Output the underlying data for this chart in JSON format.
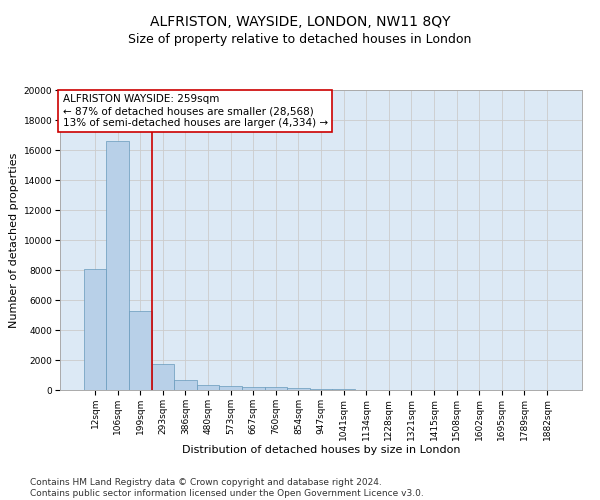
{
  "title": "ALFRISTON, WAYSIDE, LONDON, NW11 8QY",
  "subtitle": "Size of property relative to detached houses in London",
  "xlabel": "Distribution of detached houses by size in London",
  "ylabel": "Number of detached properties",
  "categories": [
    "12sqm",
    "106sqm",
    "199sqm",
    "293sqm",
    "386sqm",
    "480sqm",
    "573sqm",
    "667sqm",
    "760sqm",
    "854sqm",
    "947sqm",
    "1041sqm",
    "1134sqm",
    "1228sqm",
    "1321sqm",
    "1415sqm",
    "1508sqm",
    "1602sqm",
    "1695sqm",
    "1789sqm",
    "1882sqm"
  ],
  "values": [
    8100,
    16600,
    5300,
    1750,
    700,
    350,
    270,
    180,
    200,
    150,
    80,
    40,
    25,
    15,
    10,
    8,
    5,
    4,
    3,
    2,
    2
  ],
  "bar_color": "#b8d0e8",
  "bar_edge_color": "#6699bb",
  "vline_x": 2.5,
  "vline_color": "#cc0000",
  "annotation_text": "ALFRISTON WAYSIDE: 259sqm\n← 87% of detached houses are smaller (28,568)\n13% of semi-detached houses are larger (4,334) →",
  "annotation_box_color": "#ffffff",
  "annotation_box_edge": "#cc0000",
  "ylim": [
    0,
    20000
  ],
  "yticks": [
    0,
    2000,
    4000,
    6000,
    8000,
    10000,
    12000,
    14000,
    16000,
    18000,
    20000
  ],
  "grid_color": "#cccccc",
  "background_color": "#dce9f5",
  "footer": "Contains HM Land Registry data © Crown copyright and database right 2024.\nContains public sector information licensed under the Open Government Licence v3.0.",
  "title_fontsize": 10,
  "subtitle_fontsize": 9,
  "ylabel_fontsize": 8,
  "xlabel_fontsize": 8,
  "tick_fontsize": 6.5,
  "annotation_fontsize": 7.5,
  "footer_fontsize": 6.5
}
